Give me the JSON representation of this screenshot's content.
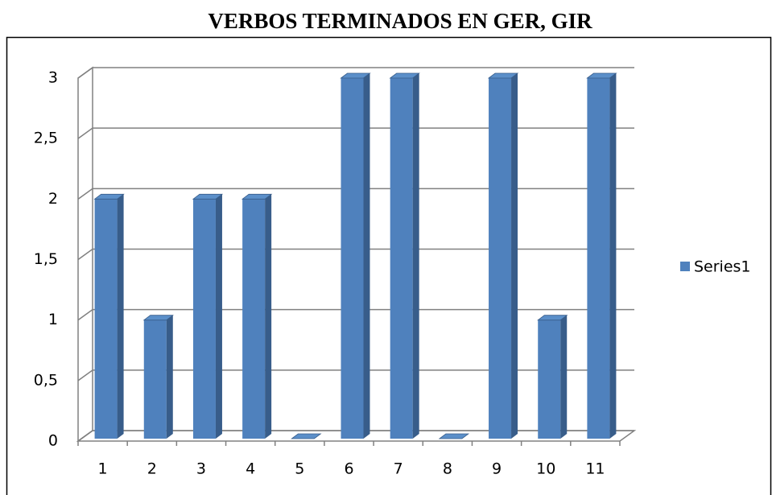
{
  "chart_data": {
    "type": "bar3d",
    "title": "VERBOS TERMINADOS EN GER, GIR",
    "categories": [
      "1",
      "2",
      "3",
      "4",
      "5",
      "6",
      "7",
      "8",
      "9",
      "10",
      "11"
    ],
    "series": [
      {
        "name": "Series1",
        "color": "#4f81bd",
        "values": [
          2,
          1,
          2,
          2,
          0,
          3,
          3,
          0,
          3,
          1,
          3
        ]
      }
    ],
    "ylim": [
      0,
      3
    ],
    "yticks": [
      0,
      {
        "value": 0.5,
        "label": "0,5"
      },
      1,
      {
        "value": 1.5,
        "label": "1,5"
      },
      2,
      {
        "value": 2.5,
        "label": "2,5"
      },
      3
    ],
    "grid": true,
    "legend": "right"
  }
}
